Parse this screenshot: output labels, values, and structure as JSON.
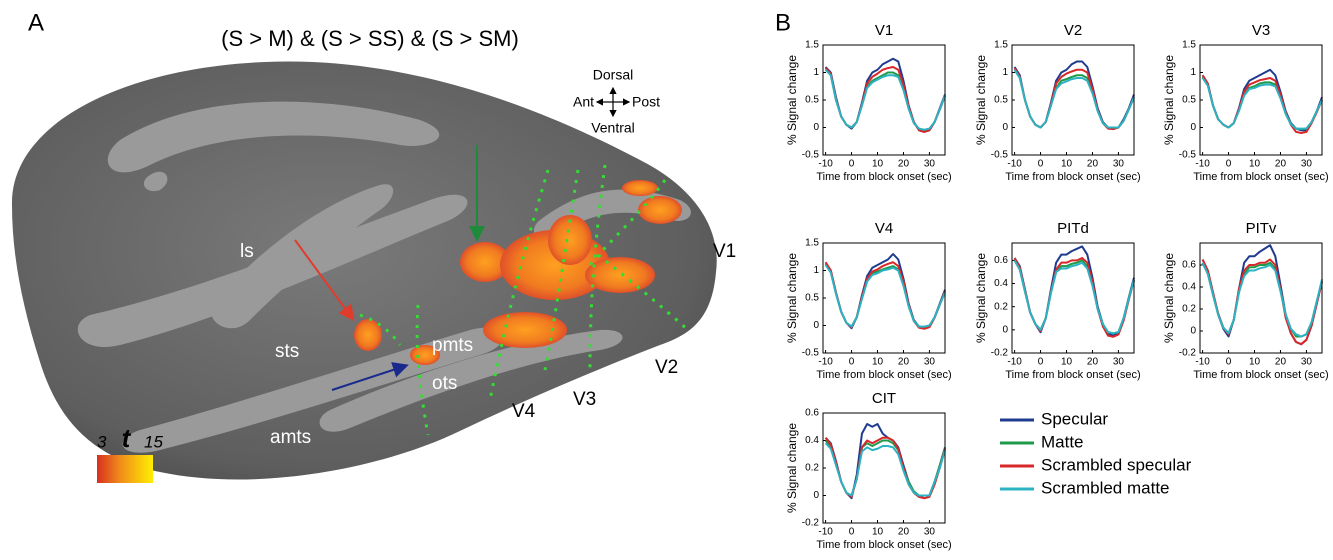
{
  "panel_a": {
    "label": "A",
    "title": "(S > M) & (S > SS) & (S > SM)",
    "orientation": {
      "dorsal": "Dorsal",
      "ventral": "Ventral",
      "anterior": "Ant",
      "posterior": "Post"
    },
    "regions": [
      "ls",
      "sts",
      "amts",
      "pmts",
      "ots",
      "V1",
      "V2",
      "V3",
      "V4"
    ],
    "colorbar": {
      "min_label": "3",
      "symbol": "t",
      "max_label": "15"
    }
  },
  "panel_b_label": "B",
  "legend": {
    "entries": [
      {
        "name": "Specular",
        "color": "#1f3b8f"
      },
      {
        "name": "Matte",
        "color": "#1f9a4a"
      },
      {
        "name": "Scrambled specular",
        "color": "#d9282a"
      },
      {
        "name": "Scrambled matte",
        "color": "#2bb3c4"
      }
    ]
  },
  "chart_data": [
    {
      "type": "line",
      "title": "V1",
      "ylabel": "% Signal change",
      "xlabel": "Time from block onset (sec)",
      "x": [
        -10,
        -8,
        -6,
        -4,
        -2,
        0,
        2,
        4,
        6,
        8,
        10,
        12,
        14,
        16,
        18,
        20,
        22,
        24,
        26,
        28,
        30,
        32,
        34,
        36
      ],
      "xlim": [
        -11,
        36
      ],
      "xticks": [
        -10,
        0,
        10,
        20,
        30
      ],
      "ylim": [
        -0.5,
        1.5
      ],
      "yticks": [
        -0.5,
        0,
        0.5,
        1,
        1.5
      ],
      "series": [
        {
          "values": [
            1.1,
            1.0,
            0.55,
            0.2,
            0.05,
            -0.02,
            0.1,
            0.45,
            0.85,
            1.0,
            1.05,
            1.15,
            1.2,
            1.25,
            1.2,
            0.85,
            0.4,
            0.1,
            -0.05,
            -0.08,
            -0.05,
            0.1,
            0.35,
            0.6
          ]
        },
        {
          "values": [
            1.05,
            0.95,
            0.5,
            0.2,
            0.05,
            0,
            0.1,
            0.4,
            0.75,
            0.85,
            0.9,
            0.95,
            1.0,
            1.0,
            0.95,
            0.7,
            0.35,
            0.08,
            -0.03,
            -0.05,
            -0.03,
            0.1,
            0.33,
            0.58
          ]
        },
        {
          "values": [
            1.08,
            0.98,
            0.52,
            0.2,
            0.05,
            0,
            0.1,
            0.42,
            0.8,
            0.92,
            0.98,
            1.05,
            1.08,
            1.1,
            1.05,
            0.78,
            0.38,
            0.1,
            -0.05,
            -0.08,
            -0.05,
            0.1,
            0.33,
            0.58
          ]
        },
        {
          "values": [
            1.05,
            0.95,
            0.5,
            0.2,
            0.05,
            0,
            0.1,
            0.4,
            0.72,
            0.82,
            0.87,
            0.92,
            0.95,
            0.95,
            0.92,
            0.68,
            0.34,
            0.08,
            -0.02,
            -0.04,
            -0.02,
            0.1,
            0.33,
            0.58
          ]
        }
      ]
    },
    {
      "type": "line",
      "title": "V2",
      "ylabel": "% Signal change",
      "xlabel": "Time from block onset (sec)",
      "x": [
        -10,
        -8,
        -6,
        -4,
        -2,
        0,
        2,
        4,
        6,
        8,
        10,
        12,
        14,
        16,
        18,
        20,
        22,
        24,
        26,
        28,
        30,
        32,
        34,
        36
      ],
      "xlim": [
        -11,
        36
      ],
      "xticks": [
        -10,
        0,
        10,
        20,
        30
      ],
      "ylim": [
        -0.5,
        1.5
      ],
      "yticks": [
        -0.5,
        0,
        0.5,
        1,
        1.5
      ],
      "series": [
        {
          "values": [
            1.1,
            0.95,
            0.5,
            0.2,
            0.05,
            0,
            0.1,
            0.45,
            0.85,
            1.0,
            1.05,
            1.15,
            1.2,
            1.2,
            1.1,
            0.75,
            0.35,
            0.1,
            0,
            -0.02,
            0,
            0.15,
            0.35,
            0.6
          ]
        },
        {
          "values": [
            1.05,
            0.9,
            0.5,
            0.2,
            0.05,
            0,
            0.1,
            0.4,
            0.72,
            0.85,
            0.88,
            0.92,
            0.95,
            0.95,
            0.9,
            0.65,
            0.3,
            0.08,
            0,
            0,
            0,
            0.12,
            0.33,
            0.55
          ]
        },
        {
          "values": [
            1.08,
            0.92,
            0.5,
            0.2,
            0.05,
            0,
            0.1,
            0.42,
            0.8,
            0.92,
            0.98,
            1.02,
            1.05,
            1.05,
            1.0,
            0.7,
            0.32,
            0.08,
            -0.02,
            -0.03,
            0,
            0.12,
            0.33,
            0.55
          ]
        },
        {
          "values": [
            1.05,
            0.9,
            0.5,
            0.2,
            0.05,
            0,
            0.1,
            0.4,
            0.7,
            0.8,
            0.84,
            0.88,
            0.9,
            0.9,
            0.85,
            0.62,
            0.3,
            0.08,
            0,
            0,
            0,
            0.12,
            0.33,
            0.55
          ]
        }
      ]
    },
    {
      "type": "line",
      "title": "V3",
      "ylabel": "% Signal change",
      "xlabel": "Time from block onset (sec)",
      "x": [
        -10,
        -8,
        -6,
        -4,
        -2,
        0,
        2,
        4,
        6,
        8,
        10,
        12,
        14,
        16,
        18,
        20,
        22,
        24,
        26,
        28,
        30,
        32,
        34,
        36
      ],
      "xlim": [
        -11,
        36
      ],
      "xticks": [
        -10,
        0,
        10,
        20,
        30
      ],
      "ylim": [
        -0.5,
        1.5
      ],
      "yticks": [
        -0.5,
        0,
        0.5,
        1,
        1.5
      ],
      "series": [
        {
          "values": [
            0.95,
            0.8,
            0.4,
            0.15,
            0.05,
            0,
            0.08,
            0.35,
            0.7,
            0.85,
            0.9,
            0.95,
            1.0,
            1.05,
            0.95,
            0.65,
            0.3,
            0.08,
            -0.02,
            -0.05,
            -0.05,
            0.1,
            0.3,
            0.55
          ]
        },
        {
          "values": [
            0.92,
            0.78,
            0.4,
            0.15,
            0.05,
            0,
            0.08,
            0.32,
            0.6,
            0.72,
            0.75,
            0.8,
            0.82,
            0.82,
            0.78,
            0.55,
            0.25,
            0.06,
            -0.02,
            -0.03,
            -0.02,
            0.1,
            0.3,
            0.5
          ]
        },
        {
          "values": [
            0.95,
            0.8,
            0.4,
            0.15,
            0.05,
            0,
            0.08,
            0.33,
            0.65,
            0.78,
            0.82,
            0.86,
            0.88,
            0.9,
            0.85,
            0.6,
            0.28,
            0.05,
            -0.08,
            -0.1,
            -0.08,
            0.08,
            0.28,
            0.5
          ]
        },
        {
          "values": [
            0.9,
            0.76,
            0.4,
            0.15,
            0.05,
            0,
            0.08,
            0.3,
            0.58,
            0.7,
            0.72,
            0.76,
            0.78,
            0.78,
            0.75,
            0.53,
            0.25,
            0.06,
            -0.02,
            -0.02,
            -0.02,
            0.1,
            0.3,
            0.5
          ]
        }
      ]
    },
    {
      "type": "line",
      "title": "V4",
      "ylabel": "% Signal change",
      "xlabel": "Time from block onset (sec)",
      "x": [
        -10,
        -8,
        -6,
        -4,
        -2,
        0,
        2,
        4,
        6,
        8,
        10,
        12,
        14,
        16,
        18,
        20,
        22,
        24,
        26,
        28,
        30,
        32,
        34,
        36
      ],
      "xlim": [
        -11,
        36
      ],
      "xticks": [
        -10,
        0,
        10,
        20,
        30
      ],
      "ylim": [
        -0.5,
        1.5
      ],
      "yticks": [
        -0.5,
        0,
        0.5,
        1,
        1.5
      ],
      "series": [
        {
          "values": [
            1.15,
            1.0,
            0.6,
            0.25,
            0.05,
            -0.05,
            0.15,
            0.55,
            0.9,
            1.05,
            1.1,
            1.15,
            1.2,
            1.3,
            1.2,
            0.85,
            0.4,
            0.1,
            -0.02,
            -0.05,
            -0.02,
            0.15,
            0.4,
            0.65
          ]
        },
        {
          "values": [
            1.12,
            0.98,
            0.58,
            0.25,
            0.05,
            -0.02,
            0.15,
            0.5,
            0.82,
            0.95,
            0.98,
            1.02,
            1.05,
            1.08,
            1.02,
            0.75,
            0.35,
            0.08,
            -0.02,
            -0.03,
            0,
            0.15,
            0.38,
            0.62
          ]
        },
        {
          "values": [
            1.15,
            1.0,
            0.6,
            0.25,
            0.05,
            -0.03,
            0.15,
            0.52,
            0.85,
            0.98,
            1.02,
            1.08,
            1.12,
            1.15,
            1.08,
            0.8,
            0.38,
            0.08,
            -0.04,
            -0.06,
            -0.03,
            0.14,
            0.38,
            0.62
          ]
        },
        {
          "values": [
            1.1,
            0.96,
            0.58,
            0.25,
            0.05,
            -0.02,
            0.15,
            0.48,
            0.8,
            0.92,
            0.95,
            1.0,
            1.02,
            1.05,
            1.0,
            0.72,
            0.35,
            0.08,
            -0.02,
            -0.02,
            0,
            0.15,
            0.38,
            0.6
          ]
        }
      ]
    },
    {
      "type": "line",
      "title": "PITd",
      "ylabel": "% Signal change",
      "xlabel": "Time from block onset (sec)",
      "x": [
        -10,
        -8,
        -6,
        -4,
        -2,
        0,
        2,
        4,
        6,
        8,
        10,
        12,
        14,
        16,
        18,
        20,
        22,
        24,
        26,
        28,
        30,
        32,
        34,
        36
      ],
      "xlim": [
        -11,
        36
      ],
      "xticks": [
        -10,
        0,
        10,
        20,
        30
      ],
      "ylim": [
        -0.2,
        0.75
      ],
      "yticks": [
        -0.2,
        0,
        0.2,
        0.4,
        0.6
      ],
      "series": [
        {
          "values": [
            0.62,
            0.55,
            0.35,
            0.15,
            0.05,
            -0.02,
            0.1,
            0.35,
            0.58,
            0.65,
            0.65,
            0.68,
            0.7,
            0.72,
            0.65,
            0.45,
            0.2,
            0.05,
            -0.03,
            -0.05,
            -0.03,
            0.1,
            0.28,
            0.45
          ]
        },
        {
          "values": [
            0.6,
            0.52,
            0.33,
            0.15,
            0.05,
            0,
            0.1,
            0.32,
            0.5,
            0.55,
            0.55,
            0.57,
            0.58,
            0.6,
            0.55,
            0.4,
            0.18,
            0.05,
            -0.02,
            -0.03,
            -0.02,
            0.1,
            0.27,
            0.43
          ]
        },
        {
          "values": [
            0.62,
            0.54,
            0.34,
            0.15,
            0.05,
            -0.01,
            0.1,
            0.33,
            0.52,
            0.58,
            0.58,
            0.6,
            0.6,
            0.62,
            0.58,
            0.42,
            0.18,
            0.03,
            -0.05,
            -0.06,
            -0.04,
            0.08,
            0.26,
            0.43
          ]
        },
        {
          "values": [
            0.6,
            0.52,
            0.33,
            0.15,
            0.05,
            0,
            0.1,
            0.32,
            0.5,
            0.53,
            0.53,
            0.55,
            0.56,
            0.58,
            0.53,
            0.38,
            0.18,
            0.05,
            -0.02,
            -0.03,
            -0.02,
            0.1,
            0.27,
            0.43
          ]
        }
      ]
    },
    {
      "type": "line",
      "title": "PITv",
      "ylabel": "% Signal change",
      "xlabel": "Time from block onset (sec)",
      "x": [
        -10,
        -8,
        -6,
        -4,
        -2,
        0,
        2,
        4,
        6,
        8,
        10,
        12,
        14,
        16,
        18,
        20,
        22,
        24,
        26,
        28,
        30,
        32,
        34,
        36
      ],
      "xlim": [
        -11,
        36
      ],
      "xticks": [
        -10,
        0,
        10,
        20,
        30
      ],
      "ylim": [
        -0.2,
        0.8
      ],
      "yticks": [
        -0.2,
        0,
        0.2,
        0.4,
        0.6
      ],
      "series": [
        {
          "values": [
            0.65,
            0.55,
            0.35,
            0.15,
            0.02,
            -0.05,
            0.1,
            0.38,
            0.62,
            0.68,
            0.68,
            0.72,
            0.75,
            0.78,
            0.68,
            0.42,
            0.15,
            -0.02,
            -0.1,
            -0.12,
            -0.08,
            0.05,
            0.25,
            0.45
          ]
        },
        {
          "values": [
            0.62,
            0.52,
            0.33,
            0.15,
            0.03,
            -0.02,
            0.1,
            0.35,
            0.52,
            0.58,
            0.58,
            0.6,
            0.6,
            0.62,
            0.57,
            0.38,
            0.15,
            0.02,
            -0.05,
            -0.05,
            -0.03,
            0.08,
            0.27,
            0.45
          ]
        },
        {
          "values": [
            0.65,
            0.55,
            0.35,
            0.16,
            0.03,
            -0.03,
            0.1,
            0.38,
            0.55,
            0.6,
            0.6,
            0.62,
            0.62,
            0.65,
            0.6,
            0.38,
            0.12,
            -0.02,
            -0.1,
            -0.12,
            -0.08,
            0.05,
            0.25,
            0.45
          ]
        },
        {
          "values": [
            0.62,
            0.52,
            0.33,
            0.15,
            0.03,
            -0.02,
            0.1,
            0.35,
            0.5,
            0.55,
            0.55,
            0.57,
            0.58,
            0.6,
            0.55,
            0.36,
            0.15,
            0.02,
            -0.03,
            -0.05,
            -0.03,
            0.08,
            0.27,
            0.47
          ]
        }
      ]
    },
    {
      "type": "line",
      "title": "CIT",
      "ylabel": "% Signal change",
      "xlabel": "Time from block onset (sec)",
      "x": [
        -10,
        -8,
        -6,
        -4,
        -2,
        0,
        2,
        4,
        6,
        8,
        10,
        12,
        14,
        16,
        18,
        20,
        22,
        24,
        26,
        28,
        30,
        32,
        34,
        36
      ],
      "xlim": [
        -11,
        36
      ],
      "xticks": [
        -10,
        0,
        10,
        20,
        30
      ],
      "ylim": [
        -0.2,
        0.6
      ],
      "yticks": [
        -0.2,
        0,
        0.2,
        0.4,
        0.6
      ],
      "series": [
        {
          "values": [
            0.42,
            0.38,
            0.25,
            0.1,
            0.02,
            -0.02,
            0.15,
            0.45,
            0.52,
            0.5,
            0.52,
            0.45,
            0.42,
            0.4,
            0.35,
            0.22,
            0.1,
            0.02,
            -0.01,
            0,
            0,
            0.1,
            0.22,
            0.35
          ]
        },
        {
          "values": [
            0.4,
            0.35,
            0.23,
            0.1,
            0.02,
            0,
            0.12,
            0.35,
            0.38,
            0.36,
            0.38,
            0.4,
            0.4,
            0.38,
            0.33,
            0.2,
            0.1,
            0.03,
            0,
            0,
            0,
            0.1,
            0.22,
            0.35
          ]
        },
        {
          "values": [
            0.42,
            0.37,
            0.24,
            0.1,
            0.02,
            -0.01,
            0.12,
            0.35,
            0.4,
            0.38,
            0.4,
            0.42,
            0.42,
            0.4,
            0.34,
            0.2,
            0.08,
            0.02,
            -0.01,
            -0.02,
            -0.01,
            0.08,
            0.2,
            0.34
          ]
        },
        {
          "values": [
            0.38,
            0.34,
            0.22,
            0.1,
            0.02,
            0,
            0.12,
            0.32,
            0.35,
            0.33,
            0.34,
            0.36,
            0.36,
            0.35,
            0.3,
            0.18,
            0.08,
            0.02,
            0,
            0,
            0,
            0.1,
            0.2,
            0.33
          ]
        }
      ]
    }
  ]
}
